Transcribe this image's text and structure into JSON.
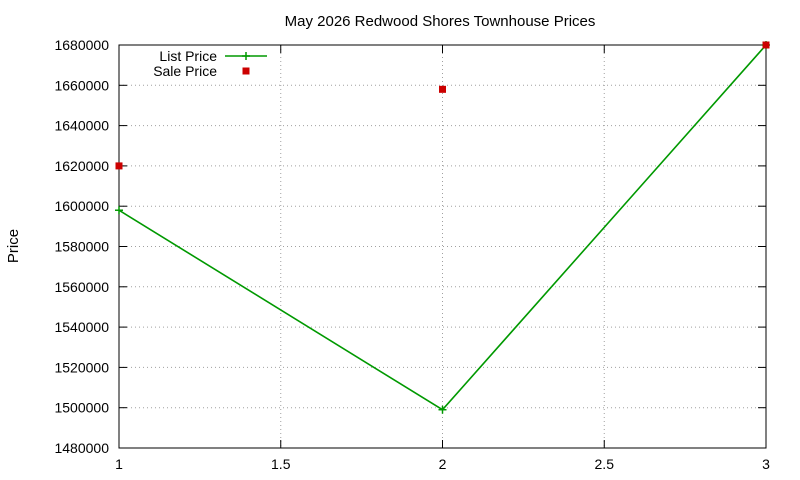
{
  "chart_data": {
    "type": "line",
    "title": "May 2026 Redwood Shores Townhouse Prices",
    "xlabel": "",
    "ylabel": "Price",
    "xlim": [
      1,
      3
    ],
    "ylim": [
      1480000,
      1680000
    ],
    "x_ticks": [
      1,
      1.5,
      2,
      2.5,
      3
    ],
    "x_tick_labels": [
      "1",
      "1.5",
      "2",
      "2.5",
      "3"
    ],
    "y_ticks": [
      1480000,
      1500000,
      1520000,
      1540000,
      1560000,
      1580000,
      1600000,
      1620000,
      1640000,
      1660000,
      1680000
    ],
    "y_tick_labels": [
      "1480000",
      "1500000",
      "1520000",
      "1540000",
      "1560000",
      "1580000",
      "1600000",
      "1620000",
      "1640000",
      "1660000",
      "1680000"
    ],
    "grid": true,
    "legend_position": "top-left",
    "series": [
      {
        "name": "List Price",
        "style": "linespoints",
        "marker": "plus",
        "color": "#009900",
        "x": [
          1,
          2,
          3
        ],
        "y": [
          1598000,
          1499000,
          1680000
        ]
      },
      {
        "name": "Sale Price",
        "style": "points",
        "marker": "square",
        "color": "#cc0000",
        "x": [
          1,
          2,
          3
        ],
        "y": [
          1620000,
          1658000,
          1680000
        ]
      }
    ]
  }
}
